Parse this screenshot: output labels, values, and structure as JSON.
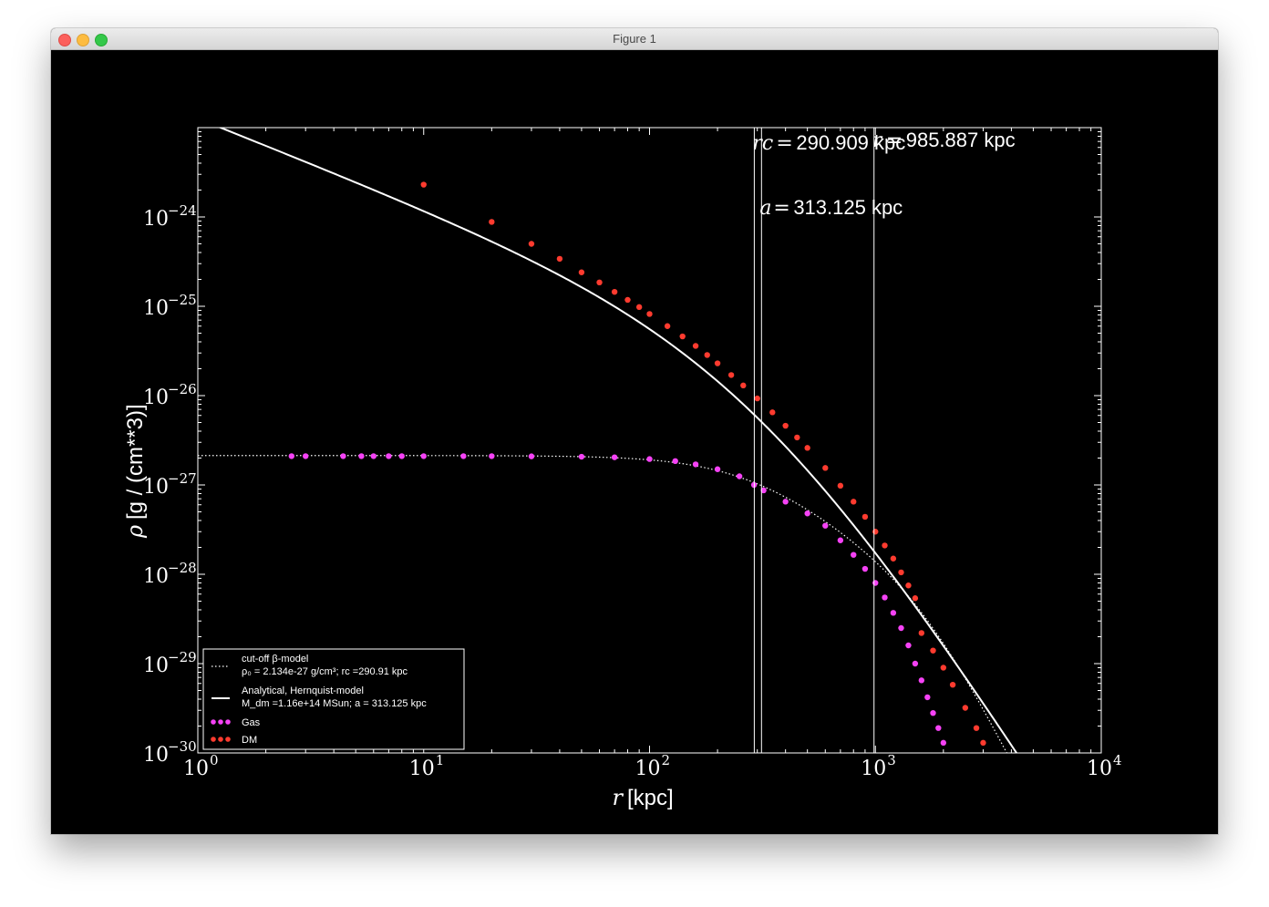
{
  "window": {
    "title": "Figure 1"
  },
  "chart_data": {
    "type": "scatter",
    "xscale": "log",
    "yscale": "log",
    "xlim": [
      1,
      10000
    ],
    "ylim": [
      1e-30,
      1e-23
    ],
    "xlabel_var": "r",
    "xlabel_unit": "[kpc]",
    "ylabel_var": "ρ",
    "ylabel_unit": "[g / (cm**3)]",
    "xticks": [
      {
        "value": 1,
        "base": "10",
        "exp": "0"
      },
      {
        "value": 10,
        "base": "10",
        "exp": "1"
      },
      {
        "value": 100,
        "base": "10",
        "exp": "2"
      },
      {
        "value": 1000,
        "base": "10",
        "exp": "3"
      },
      {
        "value": 10000,
        "base": "10",
        "exp": "4"
      }
    ],
    "yticks": [
      {
        "value": 1e-24,
        "base": "10",
        "exp": "−24"
      },
      {
        "value": 1e-25,
        "base": "10",
        "exp": "−25"
      },
      {
        "value": 1e-26,
        "base": "10",
        "exp": "−26"
      },
      {
        "value": 1e-27,
        "base": "10",
        "exp": "−27"
      },
      {
        "value": 1e-28,
        "base": "10",
        "exp": "−28"
      },
      {
        "value": 1e-29,
        "base": "10",
        "exp": "−29"
      },
      {
        "value": 1e-30,
        "base": "10",
        "exp": "−30"
      }
    ],
    "vlines": [
      {
        "x": 290.909,
        "label_var": "rc",
        "label_value": "290.909 kpc"
      },
      {
        "x": 313.125,
        "label_var": "a",
        "label_value": "313.125 kpc"
      },
      {
        "x": 985.887,
        "label_var": "r",
        "label_value": "985.887 kpc"
      }
    ],
    "series": [
      {
        "name": "cut-off β-model",
        "legend_line1": "cut-off β-model",
        "legend_line2": "ρ₀ = 2.134e-27 g/cm³; rc =290.91 kpc",
        "style": "dotted",
        "color": "#ffffff",
        "params": {
          "rho0": 2.134e-27,
          "rc": 290.91
        }
      },
      {
        "name": "Analytical, Hernquist-model",
        "legend_line1": "Analytical, Hernquist-model",
        "legend_line2": "M_dm =1.16e+14 MSun; a = 313.125 kpc",
        "style": "solid",
        "color": "#ffffff",
        "params": {
          "Mdm": 116000000000000.0,
          "a": 313.125
        }
      },
      {
        "name": "Gas",
        "style": "markers",
        "color": "#f542f5",
        "points": [
          [
            2.6,
            2.1e-27
          ],
          [
            3.0,
            2.1e-27
          ],
          [
            4.4,
            2.1e-27
          ],
          [
            5.3,
            2.1e-27
          ],
          [
            6.0,
            2.1e-27
          ],
          [
            7.0,
            2.1e-27
          ],
          [
            8.0,
            2.1e-27
          ],
          [
            10,
            2.1e-27
          ],
          [
            15,
            2.1e-27
          ],
          [
            20,
            2.1e-27
          ],
          [
            30,
            2.09e-27
          ],
          [
            50,
            2.07e-27
          ],
          [
            70,
            2.04e-27
          ],
          [
            100,
            1.95e-27
          ],
          [
            130,
            1.85e-27
          ],
          [
            160,
            1.7e-27
          ],
          [
            200,
            1.5e-27
          ],
          [
            250,
            1.25e-27
          ],
          [
            290,
            1e-27
          ],
          [
            320,
            8.7e-28
          ],
          [
            400,
            6.5e-28
          ],
          [
            500,
            4.8e-28
          ],
          [
            600,
            3.5e-28
          ],
          [
            700,
            2.4e-28
          ],
          [
            800,
            1.65e-28
          ],
          [
            900,
            1.15e-28
          ],
          [
            1000,
            8e-29
          ],
          [
            1100,
            5.5e-29
          ],
          [
            1200,
            3.7e-29
          ],
          [
            1300,
            2.5e-29
          ],
          [
            1400,
            1.6e-29
          ],
          [
            1500,
            1e-29
          ],
          [
            1600,
            6.5e-30
          ],
          [
            1700,
            4.2e-30
          ],
          [
            1800,
            2.8e-30
          ],
          [
            1900,
            1.9e-30
          ],
          [
            2000,
            1.3e-30
          ]
        ]
      },
      {
        "name": "DM",
        "style": "markers",
        "color": "#ff3b2f",
        "points": [
          [
            10,
            2.3e-24
          ],
          [
            20,
            8.8e-25
          ],
          [
            30,
            5e-25
          ],
          [
            40,
            3.4e-25
          ],
          [
            50,
            2.4e-25
          ],
          [
            60,
            1.85e-25
          ],
          [
            70,
            1.45e-25
          ],
          [
            80,
            1.18e-25
          ],
          [
            90,
            9.8e-26
          ],
          [
            100,
            8.2e-26
          ],
          [
            120,
            6e-26
          ],
          [
            140,
            4.6e-26
          ],
          [
            160,
            3.6e-26
          ],
          [
            180,
            2.85e-26
          ],
          [
            200,
            2.3e-26
          ],
          [
            230,
            1.7e-26
          ],
          [
            260,
            1.3e-26
          ],
          [
            300,
            9.3e-27
          ],
          [
            350,
            6.5e-27
          ],
          [
            400,
            4.6e-27
          ],
          [
            450,
            3.4e-27
          ],
          [
            500,
            2.6e-27
          ],
          [
            600,
            1.55e-27
          ],
          [
            700,
            9.8e-28
          ],
          [
            800,
            6.5e-28
          ],
          [
            900,
            4.4e-28
          ],
          [
            1000,
            3e-28
          ],
          [
            1100,
            2.1e-28
          ],
          [
            1200,
            1.5e-28
          ],
          [
            1300,
            1.05e-28
          ],
          [
            1400,
            7.5e-29
          ],
          [
            1500,
            5.4e-29
          ],
          [
            1600,
            2.2e-29
          ],
          [
            1800,
            1.4e-29
          ],
          [
            2000,
            9e-30
          ],
          [
            2200,
            5.8e-30
          ],
          [
            2500,
            3.2e-30
          ],
          [
            2800,
            1.9e-30
          ],
          [
            3000,
            1.3e-30
          ]
        ]
      }
    ],
    "legend": {
      "position": "lower-left"
    }
  }
}
